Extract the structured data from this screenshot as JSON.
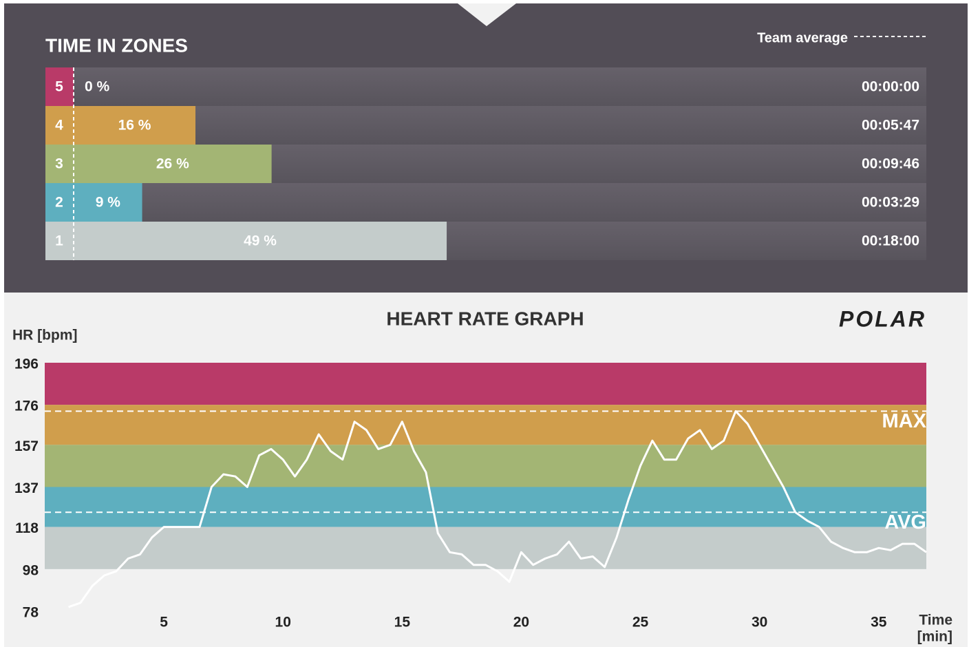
{
  "chart_data": [
    {
      "type": "bar",
      "orientation": "horizontal",
      "title": "TIME IN ZONES",
      "legend_label": "Team average",
      "categories": [
        "5",
        "4",
        "3",
        "2",
        "1"
      ],
      "values": [
        0,
        16,
        26,
        9,
        49
      ],
      "value_labels": [
        "0 %",
        "16 %",
        "26 %",
        "9 %",
        "49 %"
      ],
      "duration_labels": [
        "00:00:00",
        "00:05:47",
        "00:09:46",
        "00:03:29",
        "00:18:00"
      ],
      "colors": [
        "#b93a68",
        "#d09e4c",
        "#a3b574",
        "#5eafbf",
        "#c4cccb"
      ],
      "xlim": [
        0,
        112
      ]
    },
    {
      "type": "line",
      "title": "HEART RATE GRAPH",
      "y_label": "HR [bpm]",
      "x_label": [
        "Time",
        "[min]"
      ],
      "logo": "POLAR",
      "x": [
        1,
        1.5,
        2,
        2.5,
        3,
        3.5,
        4,
        4.5,
        5,
        5.5,
        6,
        6.5,
        7,
        7.5,
        8,
        8.5,
        9,
        9.5,
        10,
        10.5,
        11,
        11.5,
        12,
        12.5,
        13,
        13.5,
        14,
        14.5,
        15,
        15.5,
        16,
        16.5,
        17,
        17.5,
        18,
        18.5,
        19,
        19.5,
        20,
        20.5,
        21,
        21.5,
        22,
        22.5,
        23,
        23.5,
        24,
        24.5,
        25,
        25.5,
        26,
        26.5,
        27,
        27.5,
        28,
        28.5,
        29,
        29.5,
        30,
        30.5,
        31,
        31.5,
        32,
        32.5,
        33,
        33.5,
        34,
        34.5,
        35,
        35.5,
        36,
        36.5,
        37
      ],
      "values": [
        80,
        82,
        90,
        95,
        97,
        103,
        105,
        113,
        118,
        118,
        118,
        118,
        137,
        143,
        142,
        137,
        152,
        155,
        150,
        142,
        150,
        162,
        154,
        150,
        168,
        164,
        155,
        157,
        168,
        154,
        144,
        115,
        106,
        105,
        100,
        100,
        97,
        92,
        106,
        100,
        103,
        105,
        111,
        103,
        104,
        99,
        113,
        131,
        147,
        159,
        150,
        150,
        160,
        164,
        155,
        159,
        173,
        167,
        157,
        147,
        137,
        125,
        121,
        118,
        111,
        108,
        106,
        106,
        108,
        107,
        110,
        110,
        106
      ],
      "color": "#ffffff",
      "xlim": [
        0,
        37
      ],
      "ylim": [
        78,
        196
      ],
      "xticks": [
        5,
        10,
        15,
        20,
        25,
        30,
        35
      ],
      "yticks": [
        78,
        98,
        118,
        137,
        157,
        176,
        196
      ],
      "zones": [
        {
          "from": 176,
          "to": 196,
          "color": "#b93a68"
        },
        {
          "from": 157,
          "to": 176,
          "color": "#d09e4c"
        },
        {
          "from": 137,
          "to": 157,
          "color": "#a3b574"
        },
        {
          "from": 118,
          "to": 137,
          "color": "#5eafbf"
        },
        {
          "from": 98,
          "to": 118,
          "color": "#c4cccb"
        }
      ],
      "reference_lines": [
        {
          "label": "MAX",
          "value": 173
        },
        {
          "label": "AVG",
          "value": 125
        }
      ]
    }
  ]
}
